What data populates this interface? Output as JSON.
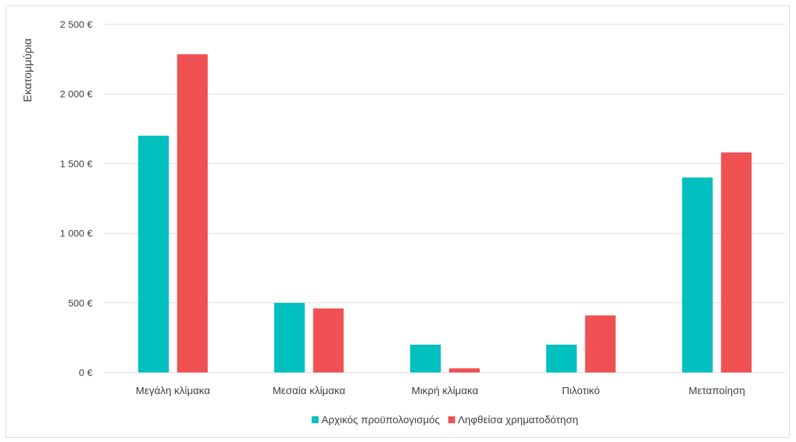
{
  "chart_data": {
    "type": "bar",
    "title": "",
    "xlabel": "",
    "ylabel": "Εκατομμύρια",
    "categories": [
      "Μεγάλη κλίμακα",
      "Μεσαία κλίμακα",
      "Μικρή κλίμακα",
      "Πιλοτικό",
      "Μεταποίηση"
    ],
    "series": [
      {
        "name": "Αρχικός προϋπολογισμός",
        "color": "#00bfbf",
        "values": [
          1700,
          500,
          200,
          200,
          1400
        ]
      },
      {
        "name": "Ληφθείσα χρηματοδότηση",
        "color": "#f05254",
        "values": [
          2285,
          460,
          30,
          410,
          1580
        ]
      }
    ],
    "ylim": [
      0,
      2500
    ],
    "yticks": [
      0,
      500,
      1000,
      1500,
      2000,
      2500
    ],
    "ytick_labels": [
      "0 €",
      "500 €",
      "1 000 €",
      "1 500 €",
      "2 000 €",
      "2 500 €"
    ],
    "grid": true,
    "legend_position": "bottom"
  }
}
